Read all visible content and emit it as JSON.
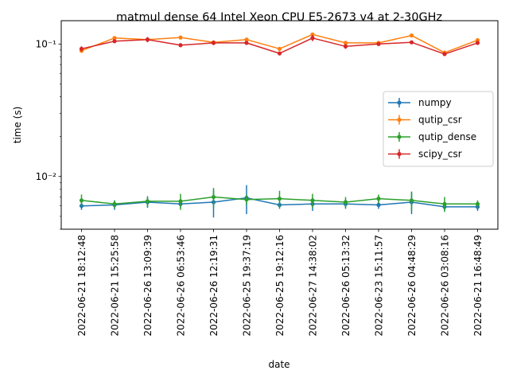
{
  "chart_data": {
    "type": "line",
    "title": "matmul dense 64 Intel Xeon CPU E5-2673 v4 at 2-30GHz",
    "xlabel": "date",
    "ylabel": "time (s)",
    "yscale": "log",
    "ylim": [
      0.004,
      0.15
    ],
    "y_ticks": [
      {
        "value": 0.1,
        "label": "10⁻¹"
      },
      {
        "value": 0.01,
        "label": "10⁻²"
      }
    ],
    "categories": [
      "2022-06-21 18:12:48",
      "2022-06-21 15:25:58",
      "2022-06-26 13:09:39",
      "2022-06-26 06:53:46",
      "2022-06-26 12:19:31",
      "2022-06-25 19:37:19",
      "2022-06-25 19:12:16",
      "2022-06-27 14:38:02",
      "2022-06-26 05:13:32",
      "2022-06-23 15:11:57",
      "2022-06-26 04:48:29",
      "2022-06-26 03:08:16",
      "2022-06-21 16:48:49"
    ],
    "legend_position": "center-right",
    "grid": false,
    "series": [
      {
        "name": "numpy",
        "color": "#1f77b4",
        "values": [
          0.006,
          0.0061,
          0.0064,
          0.0062,
          0.0064,
          0.0069,
          0.0061,
          0.0062,
          0.0062,
          0.0061,
          0.0064,
          0.0059,
          0.0059
        ],
        "errors": [
          0.0004,
          0.0005,
          0.0006,
          0.0004,
          0.0015,
          0.0017,
          0.0004,
          0.0007,
          0.0005,
          0.0004,
          0.0012,
          0.0004,
          0.0004
        ]
      },
      {
        "name": "qutip_csr",
        "color": "#ff7f0e",
        "values": [
          0.089,
          0.111,
          0.108,
          0.112,
          0.103,
          0.108,
          0.092,
          0.118,
          0.102,
          0.102,
          0.116,
          0.086,
          0.107
        ],
        "errors": [
          0.003,
          0.003,
          0.003,
          0.003,
          0.003,
          0.003,
          0.003,
          0.004,
          0.003,
          0.003,
          0.004,
          0.003,
          0.003
        ]
      },
      {
        "name": "qutip_dense",
        "color": "#2ca02c",
        "values": [
          0.0066,
          0.0062,
          0.0065,
          0.0065,
          0.007,
          0.0067,
          0.0068,
          0.0066,
          0.0064,
          0.0068,
          0.0066,
          0.0062,
          0.0062
        ],
        "errors": [
          0.0007,
          0.0004,
          0.0006,
          0.0009,
          0.0012,
          0.0006,
          0.001,
          0.0008,
          0.0006,
          0.0005,
          0.0011,
          0.0008,
          0.0004
        ]
      },
      {
        "name": "scipy_csr",
        "color": "#d62728",
        "values": [
          0.092,
          0.105,
          0.108,
          0.098,
          0.102,
          0.102,
          0.085,
          0.111,
          0.096,
          0.1,
          0.103,
          0.084,
          0.102
        ],
        "errors": [
          0.004,
          0.003,
          0.005,
          0.003,
          0.004,
          0.003,
          0.003,
          0.006,
          0.004,
          0.003,
          0.003,
          0.003,
          0.003
        ]
      }
    ]
  }
}
